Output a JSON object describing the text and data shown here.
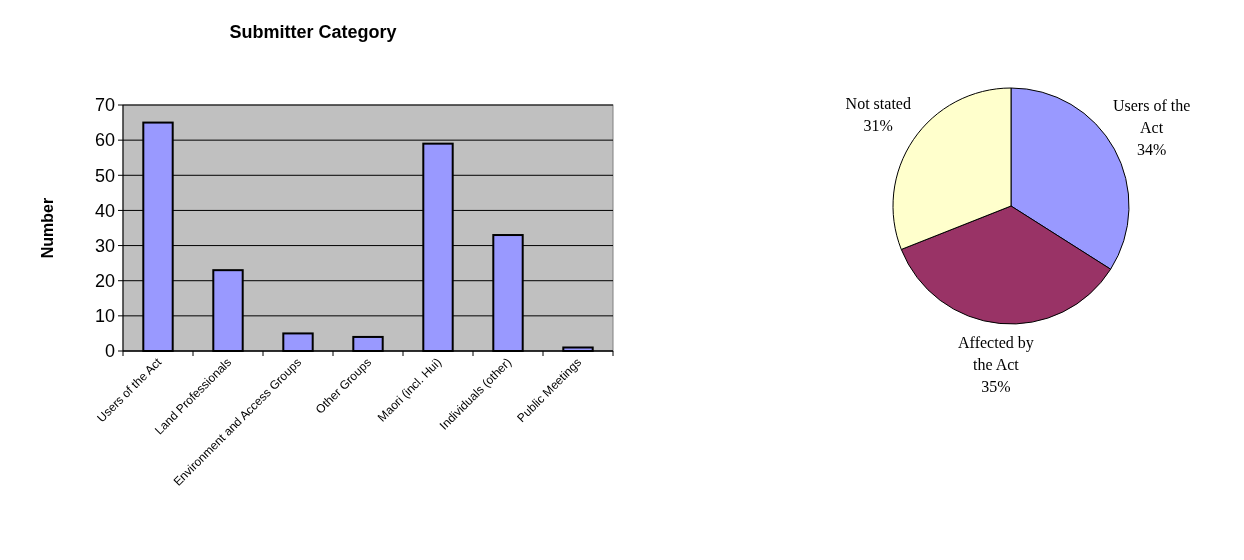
{
  "chart_data": [
    {
      "type": "bar",
      "title": "Submitter Category",
      "ylabel": "Number",
      "categories": [
        "Users of the Act",
        "Land Professionals",
        "Environment and Access Groups",
        "Other Groups",
        "Maori (incl. Hui)",
        "Individuals (other)",
        "Public Meetings"
      ],
      "values": [
        65,
        23,
        5,
        4,
        59,
        33,
        1
      ],
      "color": "#9999ff",
      "ylim": [
        0,
        70
      ],
      "yticks": [
        0,
        10,
        20,
        30,
        40,
        50,
        60,
        70
      ],
      "grid": "y"
    },
    {
      "type": "pie",
      "categories": [
        "Users of the Act",
        "Affected by the Act",
        "Not stated"
      ],
      "values": [
        34,
        35,
        31
      ],
      "colors": [
        "#9999ff",
        "#993366",
        "#ffffcc"
      ],
      "value_labels": [
        "34%",
        "35%",
        "31%"
      ]
    }
  ]
}
